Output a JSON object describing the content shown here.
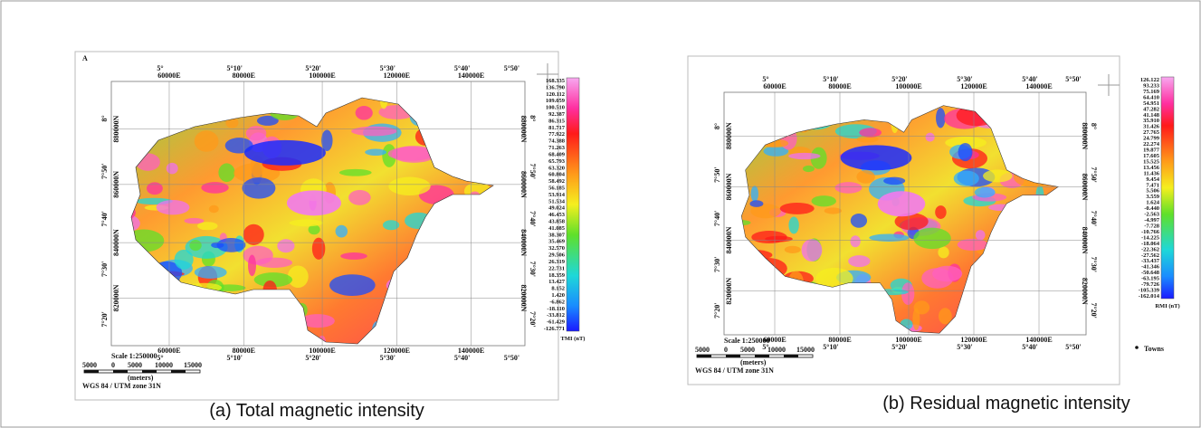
{
  "panels": [
    {
      "label": "A",
      "caption": "(a) Total magnetic intensity",
      "longitudes": [
        "5°",
        "5°10'",
        "5°20'",
        "5°30'",
        "5°40'",
        "5°50'"
      ],
      "eastings": [
        "60000E",
        "80000E",
        "100000E",
        "120000E",
        "140000E"
      ],
      "latitudes": [
        "8°",
        "7°50'",
        "7°40'",
        "7°30'",
        "7°20'"
      ],
      "northings": [
        "880000N",
        "860000N",
        "840000N",
        "820000N"
      ],
      "colorbar_values": [
        "168.335",
        "136.790",
        "120.112",
        "109.059",
        "100.510",
        "92.387",
        "86.315",
        "81.717",
        "77.922",
        "74.388",
        "71.263",
        "68.409",
        "65.793",
        "63.320",
        "60.804",
        "58.492",
        "56.185",
        "53.914",
        "51.534",
        "49.024",
        "46.453",
        "43.858",
        "41.085",
        "38.307",
        "35.469",
        "32.570",
        "29.506",
        "26.319",
        "22.731",
        "18.359",
        "13.427",
        "8.152",
        "1.420",
        "-6.862",
        "-18.110",
        "-33.812",
        "-61.429",
        "-126.771"
      ],
      "colorbar_unit": "TMI (nT)",
      "scale": "Scale 1:250000",
      "scale_ticks": [
        "5000",
        "0",
        "5000",
        "10000",
        "15000"
      ],
      "scale_unit": "(meters)",
      "projection": "WGS 84 / UTM zone 31N"
    },
    {
      "caption": "(b)  Residual magnetic intensity",
      "longitudes": [
        "5°",
        "5°10'",
        "5°20'",
        "5°30'",
        "5°40'",
        "5°50'"
      ],
      "eastings": [
        "60000E",
        "80000E",
        "100000E",
        "120000E",
        "140000E"
      ],
      "latitudes": [
        "8°",
        "7°50'",
        "7°40'",
        "7°30'",
        "7°20'"
      ],
      "northings": [
        "880000N",
        "860000N",
        "840000N",
        "820000N"
      ],
      "colorbar_values": [
        "126.122",
        "93.233",
        "75.169",
        "64.410",
        "54.951",
        "47.282",
        "41.148",
        "35.910",
        "31.426",
        "27.765",
        "24.799",
        "22.274",
        "19.877",
        "17.605",
        "15.525",
        "13.456",
        "11.436",
        "9.454",
        "7.471",
        "5.506",
        "3.559",
        "1.624",
        "-0.440",
        "-2.563",
        "-4.997",
        "-7.728",
        "-10.766",
        "-14.225",
        "-18.064",
        "-22.362",
        "-27.562",
        "-33.437",
        "-41.346",
        "-50.648",
        "-63.195",
        "-79.726",
        "-105.339",
        "-162.014"
      ],
      "colorbar_unit": "RMI (nT)",
      "scale": "Scale 1:250000",
      "scale_ticks": [
        "5000",
        "0",
        "5000",
        "10000",
        "15000"
      ],
      "scale_unit": "(meters)",
      "projection": "WGS 84 / UTM zone 31N",
      "legend": "Towns"
    }
  ]
}
